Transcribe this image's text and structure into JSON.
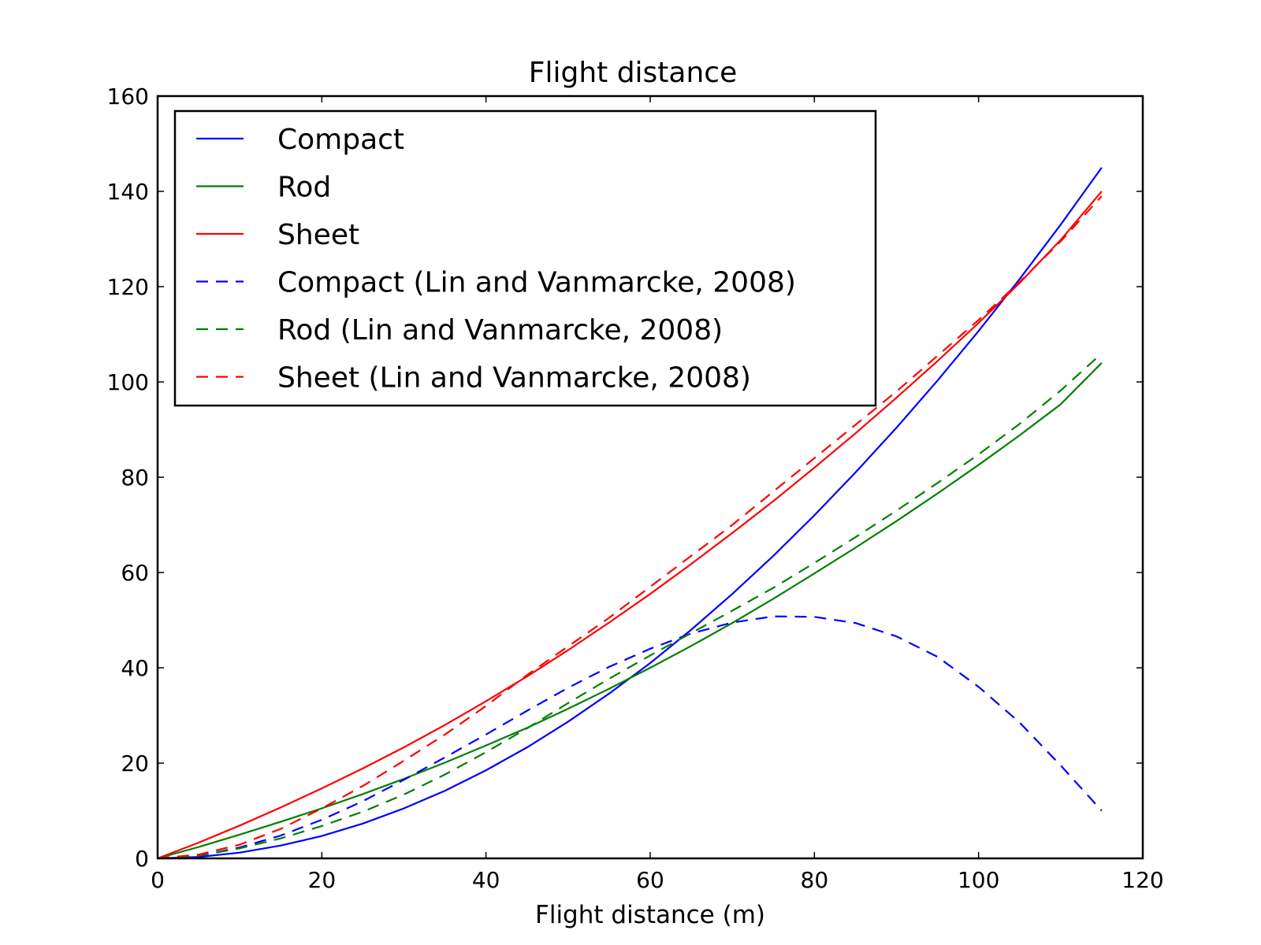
{
  "chart_data": {
    "type": "line",
    "title": "Flight distance",
    "xlabel": "Flight distance (m)",
    "ylabel": "",
    "xlim": [
      0,
      120
    ],
    "ylim": [
      0,
      160
    ],
    "xticks": [
      "0",
      "20",
      "40",
      "60",
      "80",
      "100",
      "120"
    ],
    "yticks": [
      "0",
      "20",
      "40",
      "60",
      "80",
      "100",
      "120",
      "140",
      "160"
    ],
    "grid": false,
    "legend_position": "top-left",
    "x": [
      0,
      5,
      10,
      15,
      20,
      25,
      30,
      35,
      40,
      45,
      50,
      55,
      60,
      65,
      70,
      75,
      80,
      85,
      90,
      95,
      100,
      105,
      110,
      115
    ],
    "series": [
      {
        "name": "Compact",
        "color": "#0000ff",
        "dash": "solid",
        "values": [
          0,
          0.3,
          1.2,
          2.7,
          4.7,
          7.3,
          10.5,
          14.2,
          18.5,
          23.3,
          28.7,
          34.6,
          41,
          48,
          55.5,
          63.5,
          72,
          81,
          90.4,
          100.3,
          110.7,
          121.6,
          133,
          145
        ]
      },
      {
        "name": "Rod",
        "color": "#008000",
        "dash": "solid",
        "values": [
          0,
          2.4,
          5.0,
          7.7,
          10.5,
          13.5,
          16.7,
          20.1,
          23.7,
          27.4,
          31.4,
          35.6,
          40.0,
          44.6,
          49.4,
          54.5,
          59.8,
          65.2,
          70.8,
          76.6,
          82.6,
          88.8,
          95.3,
          104
        ]
      },
      {
        "name": "Sheet",
        "color": "#ff0000",
        "dash": "solid",
        "values": [
          0,
          3.3,
          6.9,
          10.7,
          14.7,
          18.9,
          23.3,
          28.0,
          33.0,
          38.2,
          43.7,
          49.5,
          55.5,
          61.8,
          68.3,
          75.0,
          82.0,
          89.2,
          96.7,
          104.4,
          112.4,
          120.8,
          129.8,
          140
        ]
      },
      {
        "name": "Compact (Lin and Vanmarcke, 2008)",
        "color": "#0000ff",
        "dash": "dashed",
        "values": [
          0,
          0.5,
          2.3,
          4.8,
          8.1,
          12.0,
          16.5,
          21.2,
          26.0,
          31.0,
          35.8,
          40.2,
          44.0,
          47.2,
          49.5,
          50.8,
          50.7,
          49.4,
          46.6,
          42.3,
          36.0,
          28.5,
          19.5,
          10
        ]
      },
      {
        "name": "Rod (Lin and Vanmarcke, 2008)",
        "color": "#008000",
        "dash": "dashed",
        "values": [
          0,
          0.6,
          2.1,
          4.2,
          6.8,
          9.8,
          13.4,
          17.6,
          22.3,
          27.3,
          32.6,
          37.7,
          42.6,
          47.3,
          52.0,
          56.8,
          62.0,
          67.4,
          73.0,
          78.8,
          84.8,
          91.2,
          98.2,
          106
        ]
      },
      {
        "name": "Sheet (Lin and Vanmarcke, 2008)",
        "color": "#ff0000",
        "dash": "dashed",
        "values": [
          0,
          0.8,
          2.9,
          6.2,
          10.5,
          15.2,
          20.5,
          26.0,
          32.0,
          38.5,
          44.5,
          50.5,
          57.0,
          63.5,
          70.0,
          77.0,
          84.0,
          91.0,
          98.0,
          105.5,
          113.0,
          121.0,
          129.5,
          139
        ]
      }
    ]
  }
}
